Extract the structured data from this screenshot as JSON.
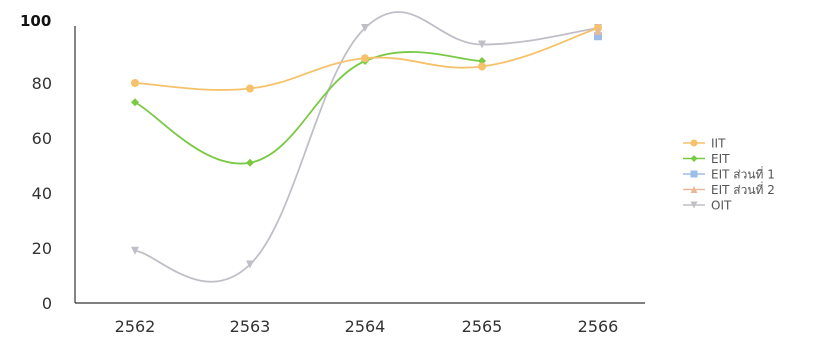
{
  "chart_data": {
    "type": "line",
    "categories": [
      "2562",
      "2563",
      "2564",
      "2565",
      "2566"
    ],
    "y_ticks": [
      "100",
      "80",
      "60",
      "40",
      "20",
      "0"
    ],
    "ylim": [
      0,
      100
    ],
    "grid": false,
    "legend_position": "right",
    "series": [
      {
        "name": "IIT",
        "color": "#f5c26b",
        "marker": "circle",
        "values": [
          80,
          78,
          89,
          86,
          100
        ]
      },
      {
        "name": "EIT",
        "color": "#7ac943",
        "marker": "diamond",
        "values": [
          73,
          51,
          88,
          88,
          null
        ]
      },
      {
        "name": "EIT ส่วนที่ 1",
        "color": "#9dbde6",
        "marker": "square",
        "values": [
          null,
          null,
          null,
          null,
          97
        ]
      },
      {
        "name": "EIT ส่วนที่ 2",
        "color": "#e8b89a",
        "marker": "triangle-up",
        "values": [
          null,
          null,
          null,
          null,
          99
        ]
      },
      {
        "name": "OIT",
        "color": "#bfbfc7",
        "marker": "triangle-down",
        "values": [
          19,
          14,
          100,
          94,
          100
        ]
      }
    ]
  }
}
